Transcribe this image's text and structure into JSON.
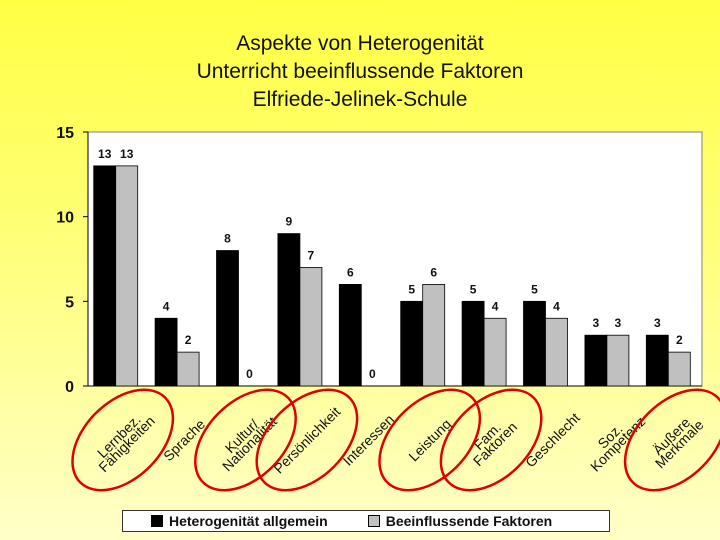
{
  "chart_data": {
    "type": "bar",
    "title": [
      "Aspekte von Heterogenität",
      "Unterricht beeinflussende Faktoren",
      "Elfriede-Jelinek-Schule"
    ],
    "categories": [
      "Lernbez. Fähigkeiten",
      "Sprache",
      "Kultur/ Nationalität",
      "Persönlichkeit",
      "Interessen",
      "Leistung",
      "Fam. Faktoren",
      "Geschlecht",
      "Soz. Kompetenz",
      "Äußere Merkmale"
    ],
    "series": [
      {
        "name": "Heterogenität allgemein",
        "color": "#000000",
        "values": [
          13,
          4,
          8,
          9,
          6,
          5,
          5,
          5,
          3,
          3
        ]
      },
      {
        "name": "Beeinflussende Faktoren",
        "color": "#c0c0c0",
        "values": [
          13,
          2,
          0,
          7,
          0,
          6,
          4,
          4,
          3,
          2
        ]
      }
    ],
    "ylim": [
      0,
      15
    ],
    "yticks": [
      0,
      5,
      10,
      15
    ],
    "grid": false,
    "legend": "bottom",
    "plot_background": "#ffffff",
    "annotations": "red ellipses around categories Lernbez. Fähigkeiten, Kultur/ Nationalität, Persönlichkeit, Leistung, Fam. Faktoren, Äußere Merkmale",
    "circled_categories": [
      0,
      2,
      3,
      5,
      6,
      9
    ],
    "circle_color": "#e00000"
  }
}
